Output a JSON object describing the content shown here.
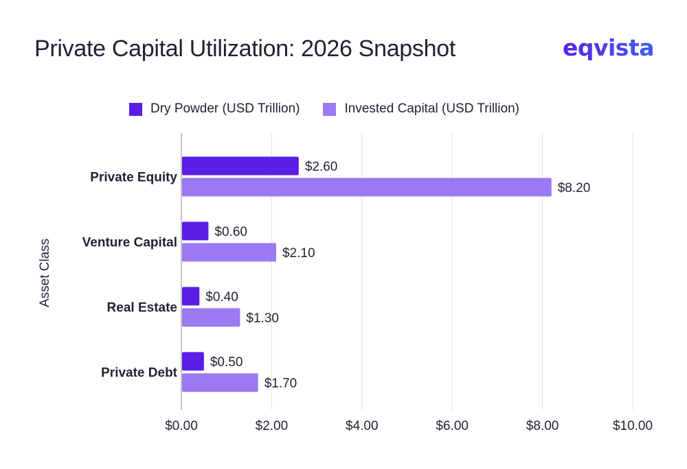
{
  "header": {
    "title": "Private Capital Utilization: 2026 Snapshot",
    "logo_text": "eqvista"
  },
  "chart_data": {
    "type": "bar",
    "orientation": "horizontal",
    "title": "Private Capital Utilization: 2026 Snapshot",
    "categories": [
      "Private Equity",
      "Venture Capital",
      "Real Estate",
      "Private Debt"
    ],
    "series": [
      {
        "name": "Dry Powder (USD Trillion)",
        "values": [
          2.6,
          0.6,
          0.4,
          0.5
        ],
        "color": "#5b1ee6",
        "labels": [
          "$2.60",
          "$0.60",
          "$0.40",
          "$0.50"
        ]
      },
      {
        "name": "Invested Capital (USD Trillion)",
        "values": [
          8.2,
          2.1,
          1.3,
          1.7
        ],
        "color": "#9b79f2",
        "labels": [
          "$8.20",
          "$2.10",
          "$1.30",
          "$1.70"
        ]
      }
    ],
    "xlabel": "",
    "ylabel": "Asset Class",
    "xlim": [
      0,
      10
    ],
    "xticks": [
      0,
      2,
      4,
      6,
      8,
      10
    ],
    "xtick_labels": [
      "$0.00",
      "$2.00",
      "$4.00",
      "$6.00",
      "$8.00",
      "$10.00"
    ],
    "grid": "vertical",
    "legend": "top"
  }
}
